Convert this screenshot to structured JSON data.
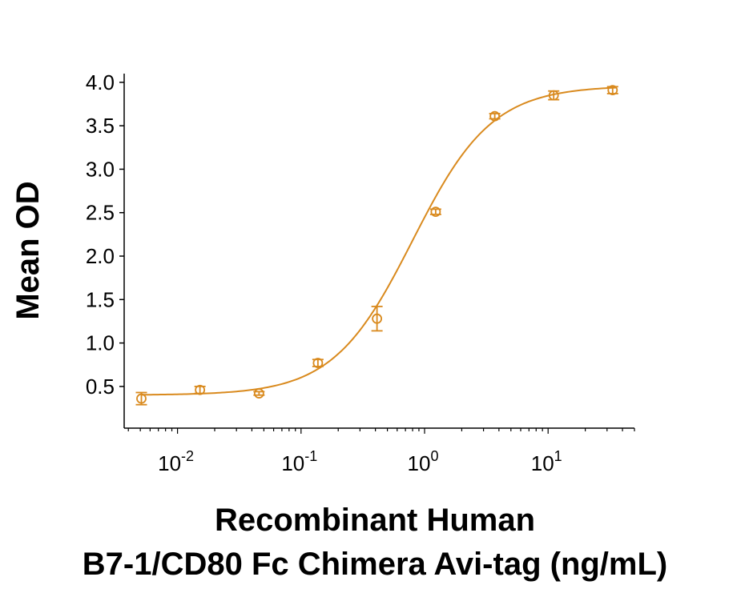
{
  "chart_data": {
    "type": "scatter",
    "title": "",
    "xlabel_lines": [
      "Recombinant Human",
      "B7-1/CD80 Fc Chimera Avi-tag (ng/mL)"
    ],
    "ylabel": "Mean OD",
    "x_scale": "log",
    "xlim": [
      0.0037,
      50
    ],
    "ylim": [
      0.02,
      4.1
    ],
    "y_ticks": [
      0.5,
      1.0,
      1.5,
      2.0,
      2.5,
      3.0,
      3.5,
      4.0
    ],
    "y_tick_labels": [
      "0.5",
      "1.0",
      "1.5",
      "2.0",
      "2.5",
      "3.0",
      "3.5",
      "4.0"
    ],
    "x_ticks": [
      0.01,
      0.1,
      1,
      10
    ],
    "x_tick_labels": [
      {
        "base": "10",
        "exp": "-2"
      },
      {
        "base": "10",
        "exp": "-1"
      },
      {
        "base": "10",
        "exp": "0"
      },
      {
        "base": "10",
        "exp": "1"
      }
    ],
    "grid": false,
    "legend": "none",
    "color": "#D98A1E",
    "series": [
      {
        "x": [
          0.0051,
          0.0152,
          0.0457,
          0.137,
          0.412,
          1.23,
          3.7,
          11.1,
          33.3
        ],
        "y": [
          0.36,
          0.46,
          0.42,
          0.77,
          1.28,
          2.51,
          3.61,
          3.85,
          3.91
        ],
        "error": [
          0.07,
          0.04,
          0.02,
          0.04,
          0.14,
          0.03,
          0.03,
          0.05,
          0.04
        ]
      }
    ],
    "fit_curve": {
      "model": "4PL",
      "bottom": 0.4,
      "top": 3.96,
      "ec50": 0.8,
      "hill": 1.35
    }
  }
}
